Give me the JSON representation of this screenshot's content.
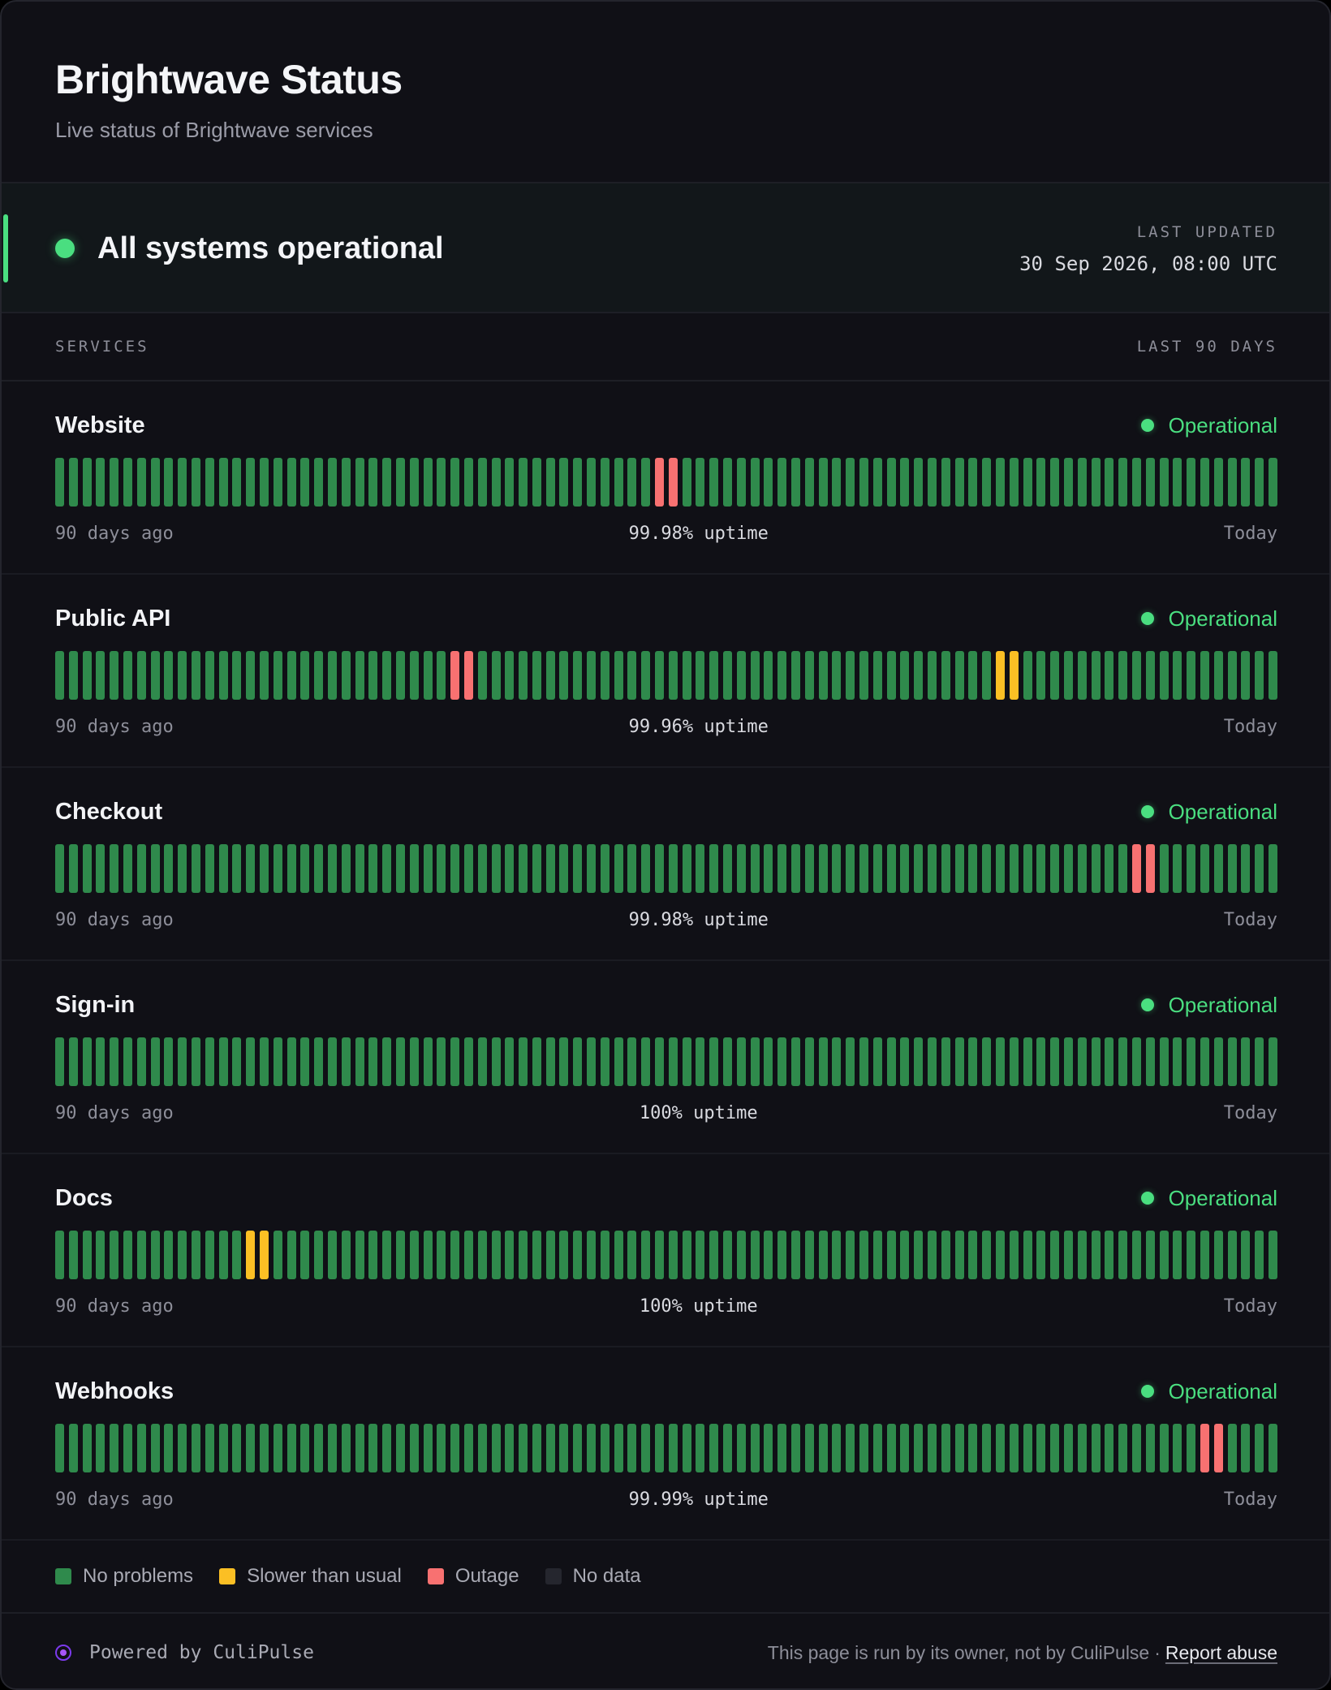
{
  "header": {
    "title": "Brightwave Status",
    "subtitle": "Live status of Brightwave services"
  },
  "overall": {
    "status": "All systems operational",
    "updated_label": "LAST UPDATED",
    "updated_value": "30 Sep 2026, 08:00 UTC",
    "color": "#4ade80"
  },
  "section": {
    "left": "SERVICES",
    "right": "LAST 90 DAYS"
  },
  "day_count": 90,
  "timeline": {
    "start_label": "90 days ago",
    "end_label": "Today"
  },
  "services": [
    {
      "name": "Website",
      "status": "Operational",
      "uptime": "99.98% uptime",
      "outage_days": [
        44,
        45
      ],
      "slow_days": []
    },
    {
      "name": "Public API",
      "status": "Operational",
      "uptime": "99.96% uptime",
      "outage_days": [
        29,
        30
      ],
      "slow_days": [
        69,
        70
      ]
    },
    {
      "name": "Checkout",
      "status": "Operational",
      "uptime": "99.98% uptime",
      "outage_days": [
        79,
        80
      ],
      "slow_days": []
    },
    {
      "name": "Sign-in",
      "status": "Operational",
      "uptime": "100% uptime",
      "outage_days": [],
      "slow_days": []
    },
    {
      "name": "Docs",
      "status": "Operational",
      "uptime": "100% uptime",
      "outage_days": [],
      "slow_days": [
        14,
        15
      ]
    },
    {
      "name": "Webhooks",
      "status": "Operational",
      "uptime": "99.99% uptime",
      "outage_days": [
        84,
        85
      ],
      "slow_days": []
    }
  ],
  "legend": [
    {
      "label": "No problems",
      "color": "#2f8a4c"
    },
    {
      "label": "Slower than usual",
      "color": "#fbbf24"
    },
    {
      "label": "Outage",
      "color": "#f87171"
    },
    {
      "label": "No data",
      "color": "#25262e"
    }
  ],
  "footer": {
    "powered": "Powered by CuliPulse",
    "note": "This page is run by its owner, not by CuliPulse",
    "separator": "·",
    "report": "Report abuse"
  },
  "icons": {
    "brand": "culipulse-logo-icon",
    "status": "status-dot-icon"
  }
}
